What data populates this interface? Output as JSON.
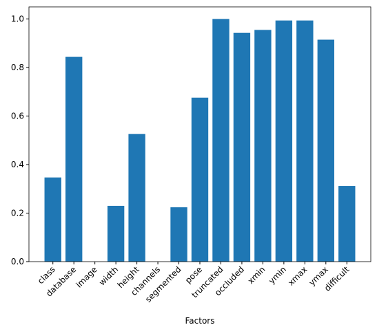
{
  "chart_data": {
    "type": "bar",
    "x_label": "Factors",
    "categories": [
      "class",
      "database",
      "image",
      "width",
      "height",
      "channels",
      "segmented",
      "pose",
      "truncated",
      "occluded",
      "xmin",
      "ymin",
      "xmax",
      "ymax",
      "difficult"
    ],
    "values": [
      0.347,
      0.844,
      0,
      0.23,
      0.526,
      0,
      0.224,
      0.676,
      1.0,
      0.943,
      0.955,
      0.994,
      0.994,
      0.915,
      0.312
    ],
    "color": "#1f77b4",
    "ylim": [
      0,
      1.05
    ],
    "yticks": [
      {
        "value": 0,
        "label": "0.0"
      },
      {
        "value": 0.2,
        "label": "0.2"
      },
      {
        "value": 0.4,
        "label": "0.4"
      },
      {
        "value": 0.6,
        "label": "0.6"
      },
      {
        "value": 0.8,
        "label": "0.8"
      },
      {
        "value": 1.0,
        "label": "1.0"
      }
    ],
    "grid": false
  }
}
